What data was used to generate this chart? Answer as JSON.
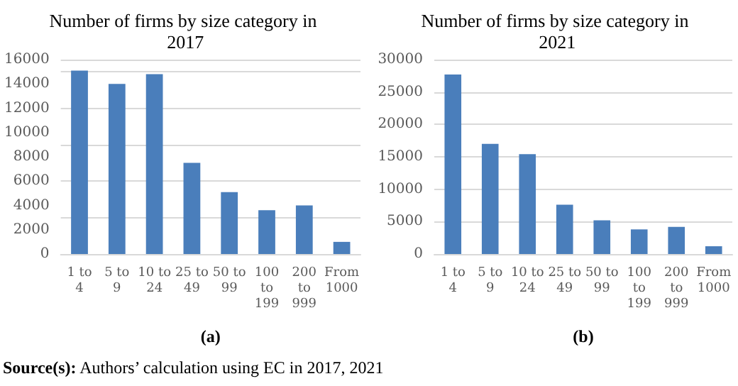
{
  "chart_data": [
    {
      "type": "bar",
      "title": "Number of firms by size category in 2017",
      "xlabel": "(a)",
      "categories": [
        "1 to 4",
        "5 to 9",
        "10 to 24",
        "25 to 49",
        "50 to 99",
        "100 to 199",
        "200 to 999",
        "From 1000"
      ],
      "values": [
        15100,
        14000,
        14800,
        7500,
        5100,
        3600,
        4000,
        1000
      ],
      "color": "#4a7ebb",
      "ylim": [
        0,
        16000
      ],
      "yticks": [
        0,
        2000,
        4000,
        6000,
        8000,
        10000,
        12000,
        14000,
        16000
      ],
      "grid": "y",
      "annotations": [
        "Source(s): Authors’ calculation using EC in 2017, 2021"
      ]
    },
    {
      "type": "bar",
      "title": "Number of firms by size category in 2021",
      "xlabel": "(b)",
      "categories": [
        "1 to 4",
        "5 to 9",
        "10 to 24",
        "25 to 49",
        "50 to 99",
        "100 to 199",
        "200 to 999",
        "From 1000"
      ],
      "values": [
        27700,
        17000,
        15400,
        7600,
        5200,
        3800,
        4200,
        1200
      ],
      "color": "#4a7ebb",
      "ylim": [
        0,
        30000
      ],
      "yticks": [
        0,
        5000,
        10000,
        15000,
        20000,
        25000,
        30000
      ],
      "grid": "y"
    }
  ]
}
